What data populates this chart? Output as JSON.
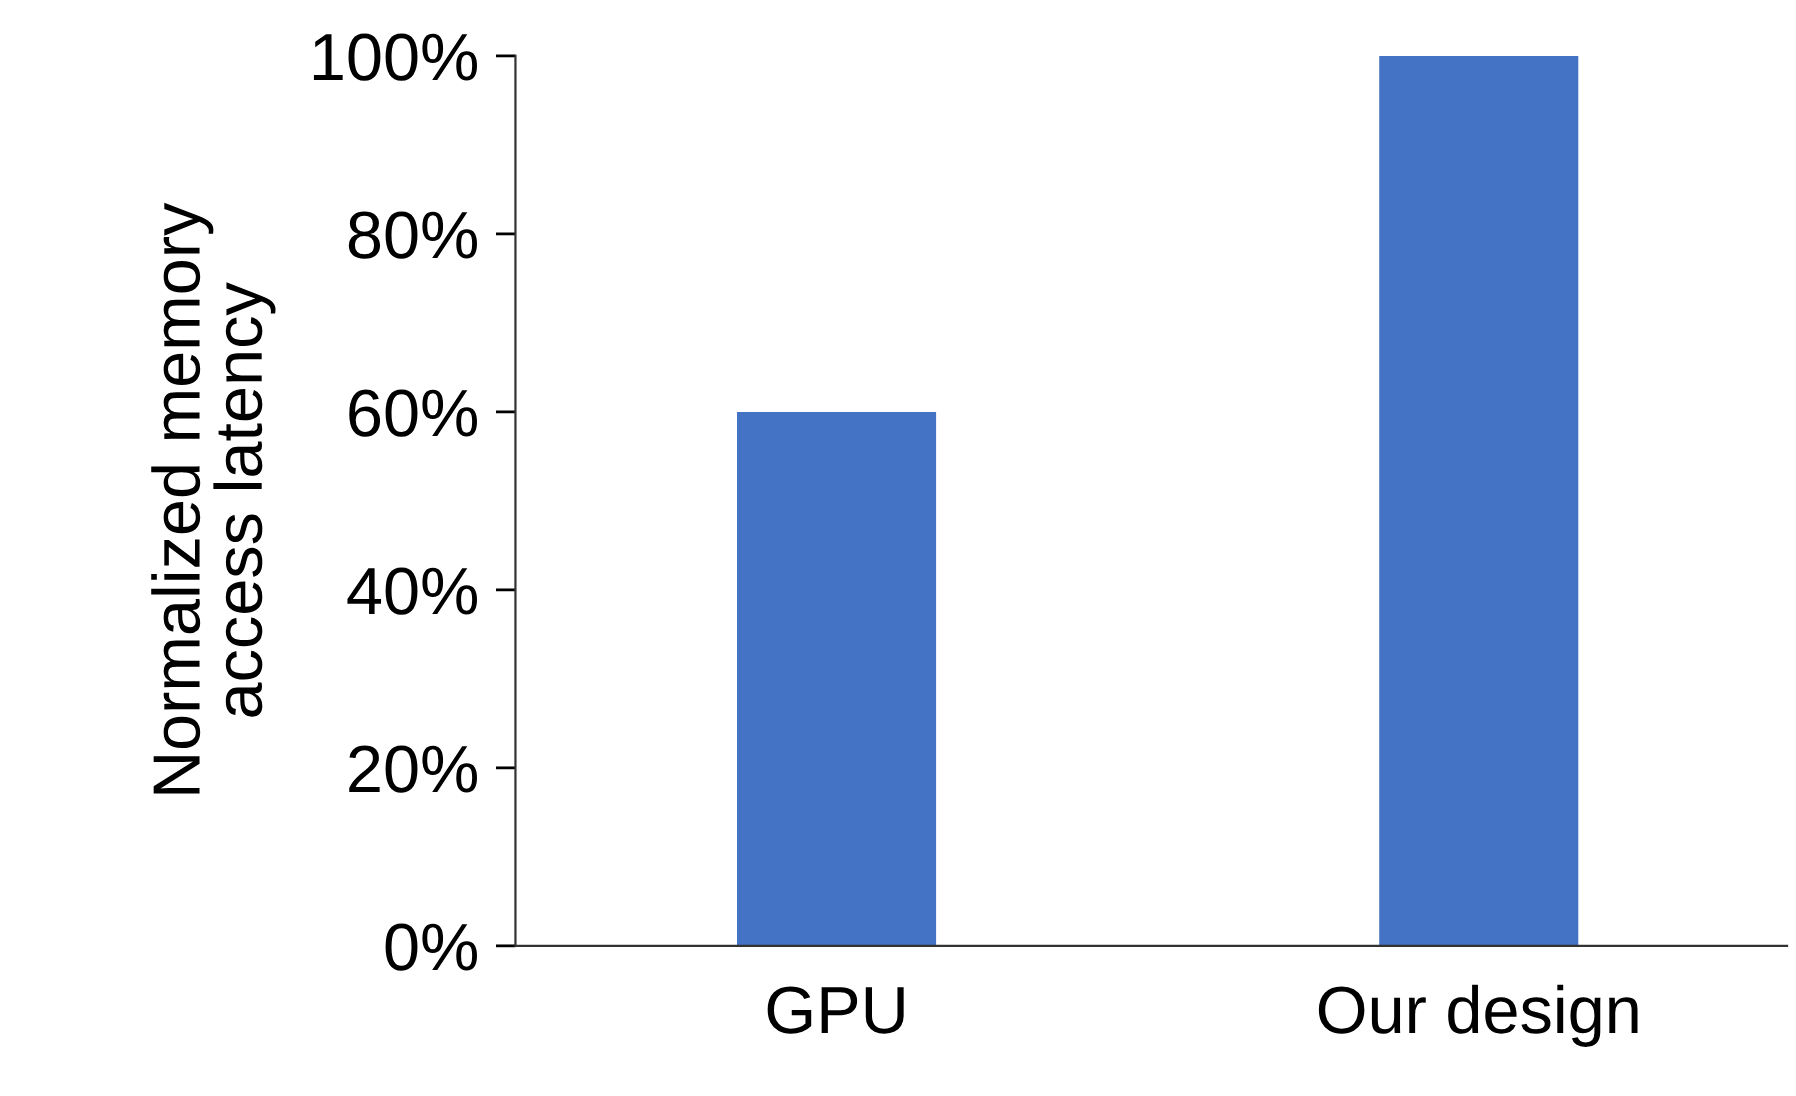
{
  "chart_data": {
    "type": "bar",
    "ylabel": "Normalized memory\naccess latency",
    "categories": [
      "GPU",
      "Our design"
    ],
    "values": [
      60,
      100
    ],
    "color": "#4472c4",
    "ylim": [
      0,
      100
    ],
    "yticks": [
      {
        "value": 0,
        "label": "0%"
      },
      {
        "value": 20,
        "label": "20%"
      },
      {
        "value": 40,
        "label": "40%"
      },
      {
        "value": 60,
        "label": "60%"
      },
      {
        "value": 80,
        "label": "80%"
      },
      {
        "value": 100,
        "label": "100%"
      }
    ],
    "grid": false,
    "legend": false
  }
}
